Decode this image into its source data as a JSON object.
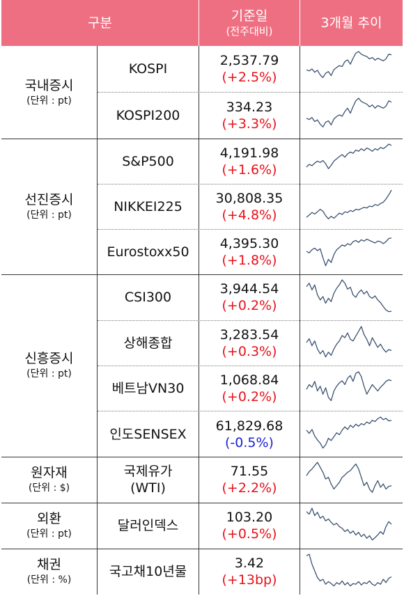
{
  "header": {
    "category": "구분",
    "base_date": "기준일",
    "base_date_sub": "(전주대비)",
    "trend": "3개월 추이"
  },
  "colors": {
    "header_bg": "#ef6f82",
    "up": "#e8101a",
    "down": "#1a20d8",
    "sparkline": "#3b5170"
  },
  "groups": [
    {
      "name": "국내증시",
      "unit": "(단위 : pt)"
    },
    {
      "name": "선진증시",
      "unit": "(단위 : pt)"
    },
    {
      "name": "신흥증시",
      "unit": "(단위 : pt)"
    },
    {
      "name": "원자재",
      "unit": "(단위 : $)"
    },
    {
      "name": "외환",
      "unit": "(단위 : pt)"
    },
    {
      "name": "채권",
      "unit": "(단위 : %)"
    }
  ],
  "rows": [
    {
      "name": "KOSPI",
      "value": "2,537.79",
      "change": "(+2.5%)",
      "direction": "up",
      "trend": [
        0.45,
        0.42,
        0.48,
        0.38,
        0.44,
        0.3,
        0.22,
        0.35,
        0.4,
        0.28,
        0.46,
        0.52,
        0.58,
        0.55,
        0.7,
        0.75,
        0.62,
        0.8,
        0.95,
        1.0,
        0.92,
        0.88,
        0.85,
        0.78,
        0.82,
        0.74,
        0.8,
        0.76,
        0.72,
        0.78,
        0.92,
        0.9
      ]
    },
    {
      "name": "KOSPI200",
      "value": "334.23",
      "change": "(+3.3%)",
      "direction": "up",
      "trend": [
        0.4,
        0.36,
        0.42,
        0.3,
        0.35,
        0.22,
        0.14,
        0.28,
        0.32,
        0.2,
        0.38,
        0.45,
        0.5,
        0.46,
        0.6,
        0.7,
        0.55,
        0.75,
        0.92,
        1.0,
        0.9,
        0.86,
        0.82,
        0.74,
        0.8,
        0.7,
        0.78,
        0.74,
        0.7,
        0.76,
        0.92,
        0.88
      ]
    },
    {
      "name": "S&P500",
      "value": "4,191.98",
      "change": "(+1.6%)",
      "direction": "up",
      "trend": [
        0.3,
        0.38,
        0.34,
        0.42,
        0.48,
        0.44,
        0.5,
        0.4,
        0.25,
        0.35,
        0.48,
        0.55,
        0.62,
        0.68,
        0.6,
        0.7,
        0.76,
        0.72,
        0.82,
        0.78,
        0.86,
        0.8,
        0.88,
        0.84,
        0.78,
        0.86,
        0.82,
        0.9,
        0.86,
        0.92,
        1.0,
        0.96
      ]
    },
    {
      "name": "NIKKEI225",
      "value": "30,808.35",
      "change": "(+4.8%)",
      "direction": "up",
      "trend": [
        0.15,
        0.22,
        0.3,
        0.25,
        0.32,
        0.4,
        0.34,
        0.2,
        0.1,
        0.18,
        0.12,
        0.2,
        0.28,
        0.24,
        0.32,
        0.3,
        0.36,
        0.33,
        0.4,
        0.38,
        0.42,
        0.46,
        0.44,
        0.5,
        0.48,
        0.55,
        0.52,
        0.58,
        0.62,
        0.72,
        0.85,
        1.0
      ]
    },
    {
      "name": "Eurostoxx50",
      "value": "4,395.30",
      "change": "(+1.8%)",
      "direction": "up",
      "trend": [
        0.5,
        0.45,
        0.55,
        0.6,
        0.52,
        0.58,
        0.3,
        0.05,
        0.25,
        0.15,
        0.4,
        0.55,
        0.62,
        0.7,
        0.66,
        0.74,
        0.7,
        0.8,
        0.84,
        0.78,
        0.86,
        0.82,
        0.88,
        0.84,
        0.8,
        0.76,
        0.82,
        0.8,
        0.74,
        0.8,
        0.9,
        0.92
      ]
    },
    {
      "name": "CSI300",
      "value": "3,944.54",
      "change": "(+0.2%)",
      "direction": "up",
      "trend": [
        0.8,
        0.9,
        0.7,
        0.85,
        0.55,
        0.4,
        0.5,
        0.3,
        0.45,
        0.35,
        0.6,
        0.75,
        0.85,
        1.0,
        0.9,
        0.72,
        0.78,
        0.55,
        0.48,
        0.62,
        0.7,
        0.58,
        0.66,
        0.5,
        0.45,
        0.52,
        0.4,
        0.32,
        0.2,
        0.1,
        0.05,
        0.06
      ]
    },
    {
      "name": "상해종합",
      "value": "3,283.54",
      "change": "(+0.3%)",
      "direction": "up",
      "trend": [
        0.5,
        0.62,
        0.4,
        0.55,
        0.3,
        0.15,
        0.25,
        0.05,
        0.2,
        0.1,
        0.3,
        0.45,
        0.55,
        0.72,
        0.65,
        0.8,
        0.6,
        0.55,
        0.7,
        0.85,
        1.0,
        0.75,
        0.6,
        0.4,
        0.65,
        0.5,
        0.35,
        0.45,
        0.3,
        0.2,
        0.28,
        0.25
      ]
    },
    {
      "name": "베트남VN30",
      "value": "1,068.84",
      "change": "(+0.2%)",
      "direction": "up",
      "trend": [
        0.45,
        0.6,
        0.52,
        0.7,
        0.4,
        0.55,
        0.3,
        0.5,
        0.2,
        0.1,
        0.4,
        0.55,
        0.65,
        0.72,
        0.6,
        0.8,
        0.88,
        0.7,
        0.95,
        1.0,
        0.85,
        0.55,
        0.3,
        0.45,
        0.6,
        0.5,
        0.4,
        0.52,
        0.6,
        0.7,
        0.75,
        0.72
      ]
    },
    {
      "name": "인도SENSEX",
      "value": "61,829.68",
      "change": "(-0.5%)",
      "direction": "down",
      "trend": [
        0.6,
        0.5,
        0.62,
        0.42,
        0.3,
        0.2,
        0.05,
        0.15,
        0.35,
        0.28,
        0.4,
        0.52,
        0.46,
        0.6,
        0.7,
        0.62,
        0.75,
        0.68,
        0.78,
        0.72,
        0.8,
        0.76,
        0.85,
        0.8,
        0.9,
        0.86,
        0.95,
        1.0,
        0.92,
        0.96,
        0.88,
        0.9
      ]
    },
    {
      "name": "국제유가\n(WTI)",
      "value": "71.55",
      "change": "(+2.2%)",
      "direction": "up",
      "trend": [
        0.6,
        0.72,
        0.8,
        0.9,
        1.0,
        0.85,
        0.7,
        0.5,
        0.55,
        0.35,
        0.2,
        0.3,
        0.4,
        0.55,
        0.62,
        0.7,
        0.75,
        0.85,
        0.95,
        0.8,
        0.55,
        0.3,
        0.4,
        0.2,
        0.1,
        0.3,
        0.45,
        0.25,
        0.35,
        0.2,
        0.28,
        0.3
      ]
    },
    {
      "name": "달러인덱스",
      "value": "103.20",
      "change": "(+0.5%)",
      "direction": "up",
      "trend": [
        0.9,
        0.82,
        1.0,
        0.78,
        0.88,
        0.7,
        0.76,
        0.62,
        0.68,
        0.58,
        0.5,
        0.55,
        0.45,
        0.4,
        0.3,
        0.36,
        0.25,
        0.32,
        0.2,
        0.28,
        0.15,
        0.22,
        0.1,
        0.18,
        0.05,
        0.12,
        0.2,
        0.3,
        0.22,
        0.45,
        0.6,
        0.52
      ]
    },
    {
      "name": "국고채10년물",
      "value": "3.42",
      "change": "(+13bp)",
      "direction": "up",
      "trend": [
        0.95,
        1.0,
        0.7,
        0.5,
        0.3,
        0.2,
        0.25,
        0.1,
        0.18,
        0.12,
        0.05,
        0.15,
        0.1,
        0.2,
        0.08,
        0.15,
        0.05,
        0.12,
        0.1,
        0.18,
        0.08,
        0.15,
        0.12,
        0.2,
        0.1,
        0.06,
        0.15,
        0.1,
        0.25,
        0.15,
        0.28,
        0.32
      ]
    }
  ]
}
